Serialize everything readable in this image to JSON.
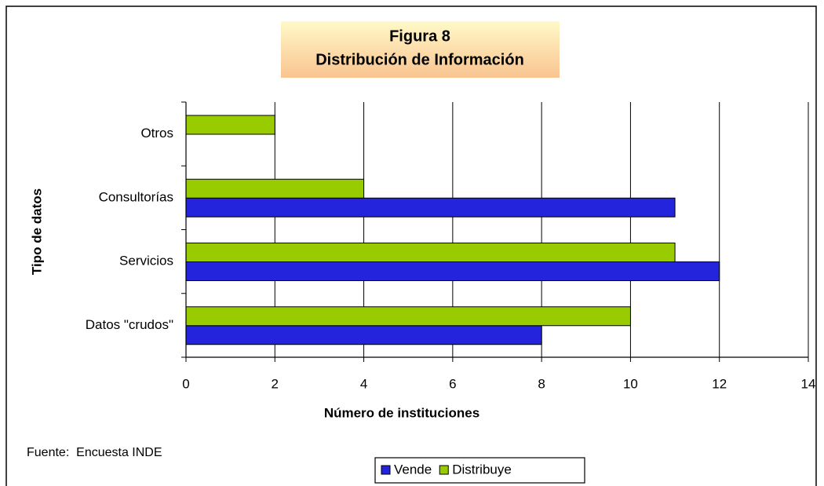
{
  "chart_data": {
    "type": "hbar",
    "title": "Figura 8",
    "subtitle": "Distribución de Información",
    "xlabel": "Número de instituciones",
    "ylabel": "Tipo de datos",
    "note": "Fuente:  Encuesta INDE",
    "categories": [
      "Datos \"crudos\"",
      "Servicios",
      "Consultorías",
      "Otros"
    ],
    "series": [
      {
        "name": "Vende",
        "color": "#2424dc",
        "values": [
          8,
          12,
          11,
          null
        ]
      },
      {
        "name": "Distribuye",
        "color": "#99cc00",
        "values": [
          10,
          11,
          4,
          2
        ]
      }
    ],
    "xlim": [
      0,
      14
    ],
    "xticks": [
      0,
      2,
      4,
      6,
      8,
      10,
      12,
      14
    ],
    "grid": true,
    "legend": "bottom"
  }
}
